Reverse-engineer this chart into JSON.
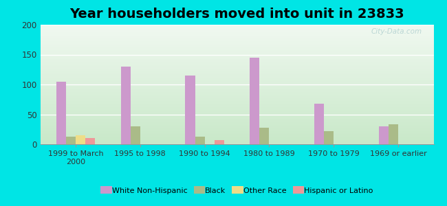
{
  "title": "Year householders moved into unit in 23833",
  "categories": [
    "1999 to March\n2000",
    "1995 to 1998",
    "1990 to 1994",
    "1980 to 1989",
    "1970 to 1979",
    "1969 or earlier"
  ],
  "series": {
    "White Non-Hispanic": [
      105,
      130,
      115,
      145,
      68,
      30
    ],
    "Black": [
      13,
      30,
      13,
      28,
      22,
      33
    ],
    "Other Race": [
      15,
      0,
      0,
      0,
      0,
      0
    ],
    "Hispanic or Latino": [
      10,
      0,
      7,
      0,
      0,
      0
    ]
  },
  "colors": {
    "White Non-Hispanic": "#cc99cc",
    "Black": "#aabb88",
    "Other Race": "#eedd88",
    "Hispanic or Latino": "#ee9999"
  },
  "ylim": [
    0,
    200
  ],
  "yticks": [
    0,
    50,
    100,
    150,
    200
  ],
  "bg_outer": "#00e5e5",
  "bg_plot_top": "#ddeedd",
  "bg_plot_bottom": "#f5faf5",
  "watermark": "City-Data.com",
  "title_fontsize": 14,
  "bar_width": 0.15
}
